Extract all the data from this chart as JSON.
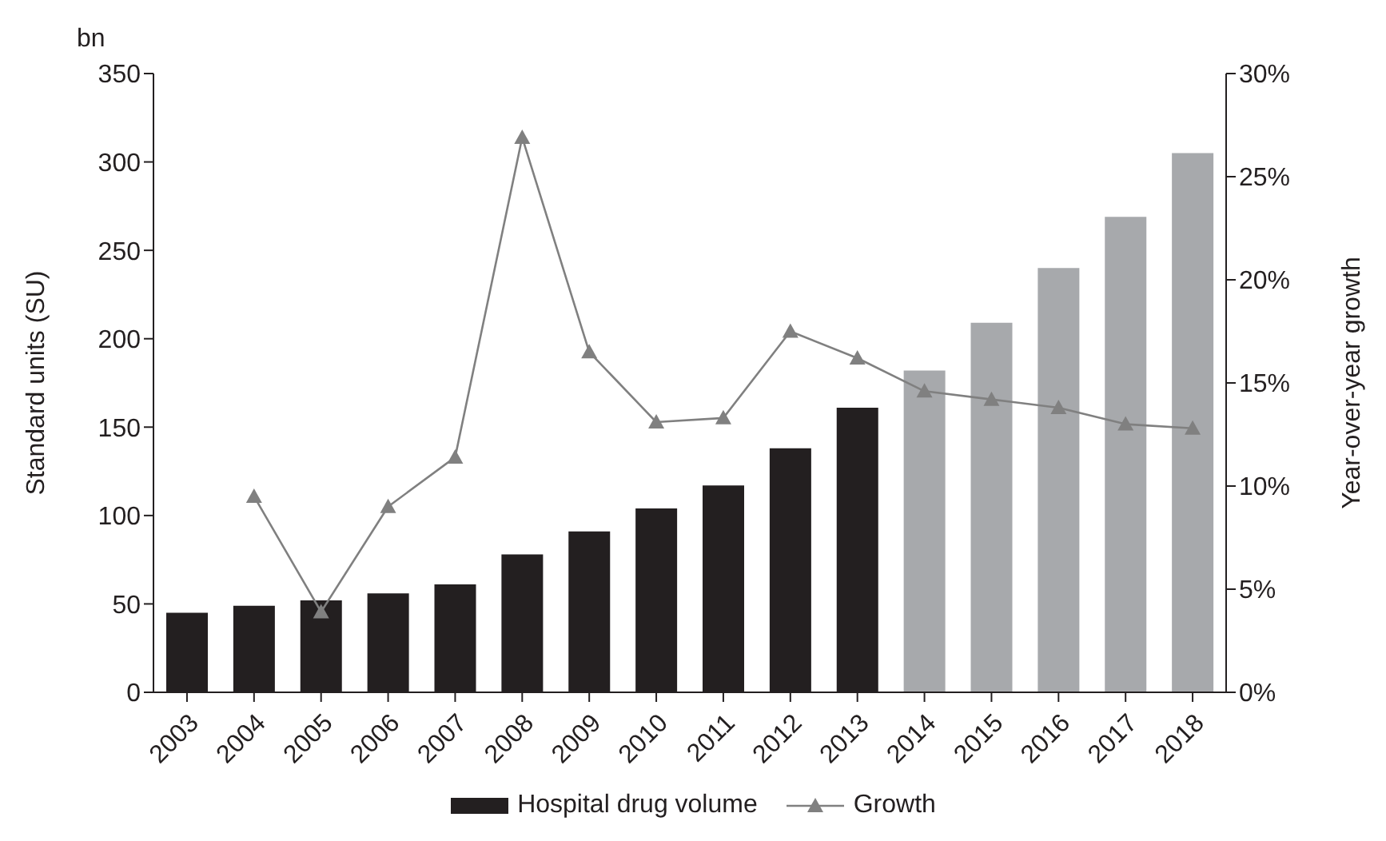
{
  "chart_data": {
    "type": "bar",
    "ylabel": "Standard units (SU)",
    "y2label": "Year-over-year growth",
    "annotations": [
      "bn"
    ],
    "categories": [
      "2003",
      "2004",
      "2005",
      "2006",
      "2007",
      "2008",
      "2009",
      "2010",
      "2011",
      "2012",
      "2013",
      "2014",
      "2015",
      "2016",
      "2017",
      "2018"
    ],
    "series": [
      {
        "name": "Hospital drug volume",
        "color": "#231f20",
        "colors": [
          "#231f20",
          "#231f20",
          "#231f20",
          "#231f20",
          "#231f20",
          "#231f20",
          "#231f20",
          "#231f20",
          "#231f20",
          "#231f20",
          "#231f20",
          "#a7a9ac",
          "#a7a9ac",
          "#a7a9ac",
          "#a7a9ac",
          "#a7a9ac"
        ],
        "values": [
          45,
          49,
          52,
          56,
          61,
          78,
          91,
          104,
          117,
          138,
          161,
          182,
          209,
          240,
          269,
          305
        ]
      },
      {
        "name": "Growth",
        "type": "line",
        "axis": "y2",
        "color": "#808080",
        "marker": "triangle",
        "values": [
          null,
          9.5,
          3.9,
          9.0,
          11.4,
          26.9,
          16.5,
          13.1,
          13.3,
          17.5,
          16.2,
          14.6,
          14.2,
          13.8,
          13.0,
          12.8
        ]
      }
    ],
    "ylim": [
      0,
      350
    ],
    "yticks": [
      0,
      50,
      100,
      150,
      200,
      250,
      300,
      350
    ],
    "y2lim": [
      0,
      30
    ],
    "y2ticks": [
      {
        "value": 0,
        "label": "0%"
      },
      {
        "value": 5,
        "label": "5%"
      },
      {
        "value": 10,
        "label": "10%"
      },
      {
        "value": 15,
        "label": "15%"
      },
      {
        "value": 20,
        "label": "20%"
      },
      {
        "value": 25,
        "label": "25%"
      },
      {
        "value": 30,
        "label": "30%"
      }
    ],
    "grid": false,
    "legend": "bottom"
  }
}
